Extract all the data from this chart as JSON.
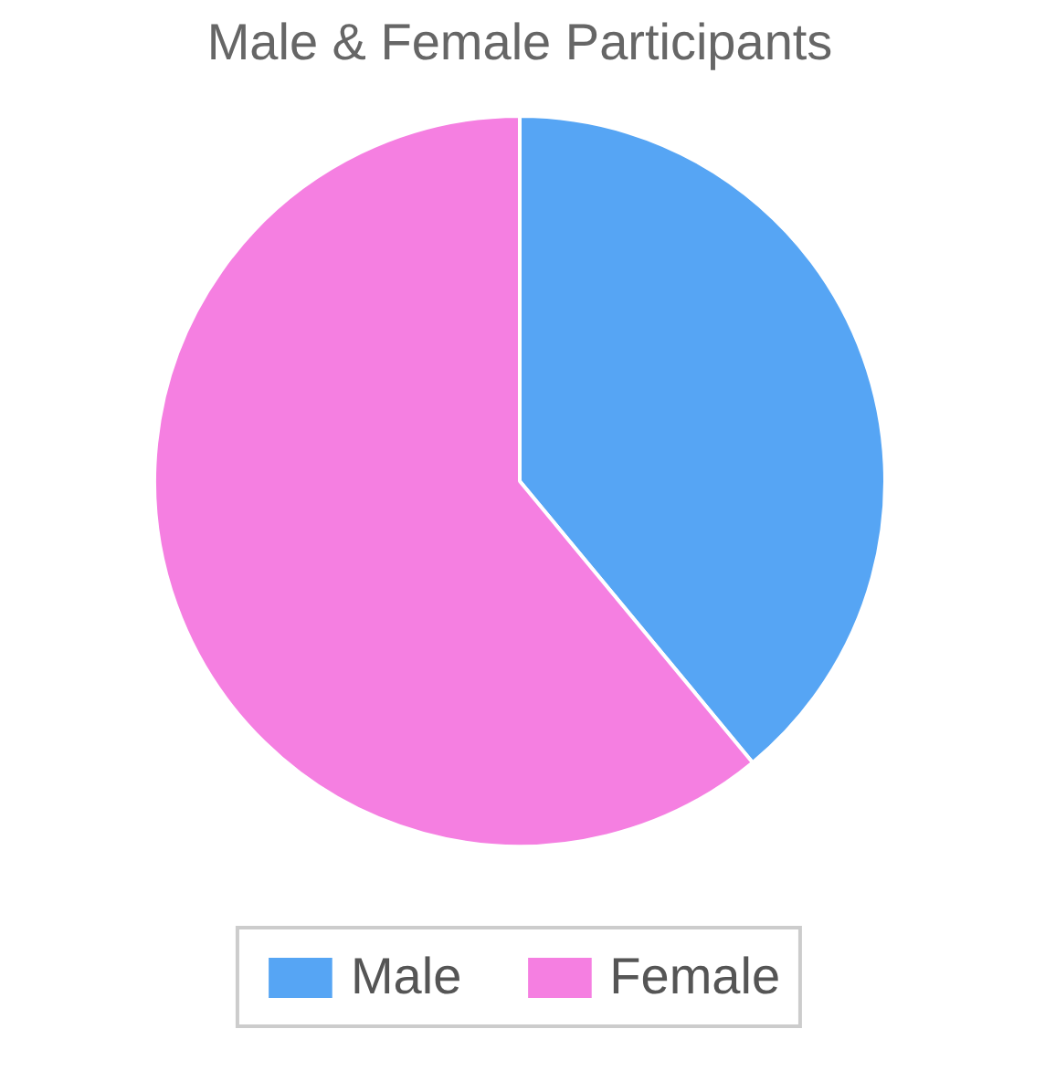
{
  "chart_data": {
    "type": "pie",
    "title": "Male & Female Participants",
    "categories": [
      "Male",
      "Female"
    ],
    "values": [
      39,
      61
    ],
    "colors": [
      "#56a5f4",
      "#f57fe1"
    ],
    "legend": "bottom"
  }
}
